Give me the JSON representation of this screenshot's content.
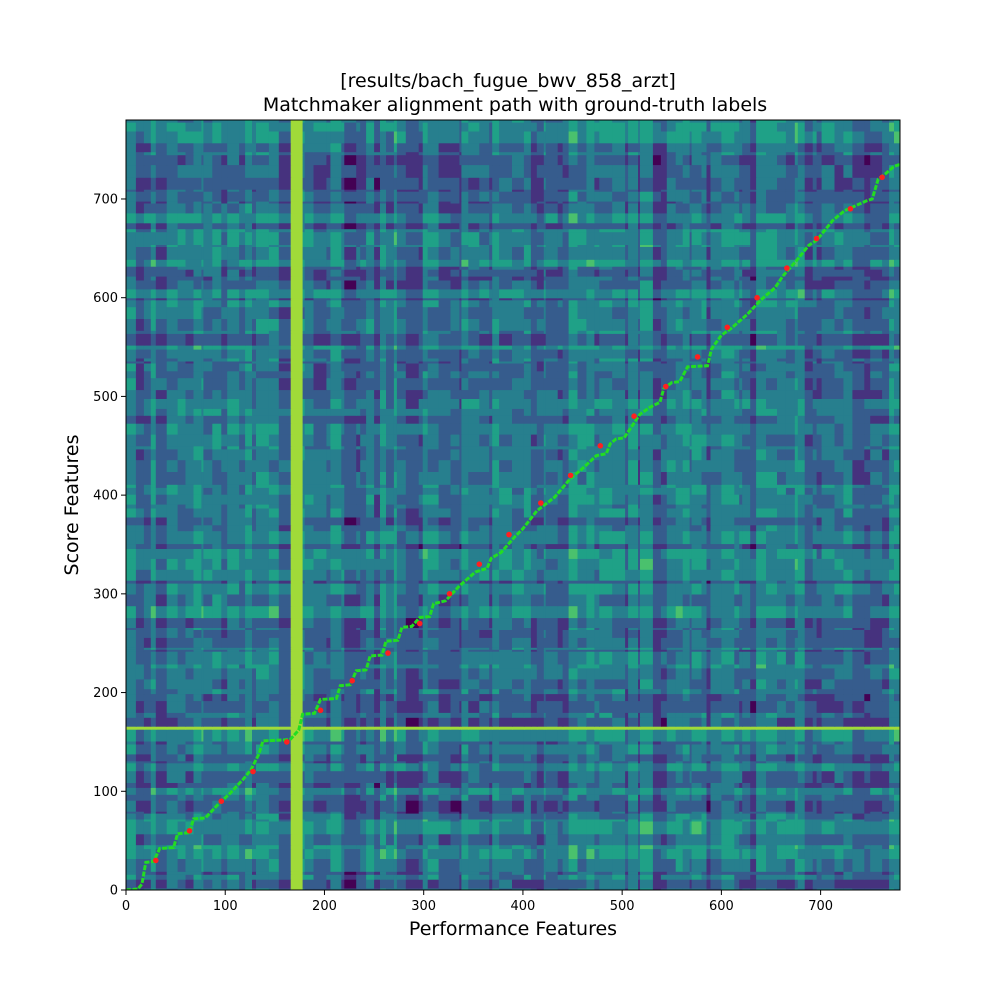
{
  "chart_data": {
    "type": "heatmap",
    "title_line1": "[results/bach_fugue_bwv_858_arzt]",
    "title_line2": "Matchmaker alignment path with ground-truth labels",
    "xlabel": "Performance Features",
    "ylabel": "Score Features",
    "xlim": [
      0,
      780
    ],
    "ylim": [
      0,
      780
    ],
    "x_ticks": [
      0,
      100,
      200,
      300,
      400,
      500,
      600,
      700
    ],
    "y_ticks": [
      0,
      100,
      200,
      300,
      400,
      500,
      600,
      700
    ],
    "colormap": "viridis",
    "path_color": "#22dd22",
    "label_color": "#ff2020",
    "alignment_path": [
      [
        0,
        0
      ],
      [
        12,
        1
      ],
      [
        16,
        6
      ],
      [
        20,
        28
      ],
      [
        28,
        29
      ],
      [
        34,
        42
      ],
      [
        48,
        43
      ],
      [
        52,
        57
      ],
      [
        64,
        58
      ],
      [
        68,
        72
      ],
      [
        80,
        73
      ],
      [
        94,
        88
      ],
      [
        104,
        97
      ],
      [
        118,
        112
      ],
      [
        126,
        122
      ],
      [
        134,
        138
      ],
      [
        138,
        151
      ],
      [
        160,
        152
      ],
      [
        166,
        153
      ],
      [
        174,
        162
      ],
      [
        178,
        178
      ],
      [
        190,
        179
      ],
      [
        196,
        193
      ],
      [
        212,
        194
      ],
      [
        216,
        207
      ],
      [
        226,
        208
      ],
      [
        232,
        222
      ],
      [
        242,
        223
      ],
      [
        246,
        237
      ],
      [
        258,
        238
      ],
      [
        262,
        252
      ],
      [
        274,
        253
      ],
      [
        278,
        266
      ],
      [
        288,
        267
      ],
      [
        296,
        276
      ],
      [
        306,
        277
      ],
      [
        310,
        290
      ],
      [
        322,
        293
      ],
      [
        336,
        308
      ],
      [
        352,
        322
      ],
      [
        364,
        326
      ],
      [
        368,
        336
      ],
      [
        378,
        342
      ],
      [
        392,
        358
      ],
      [
        400,
        366
      ],
      [
        414,
        384
      ],
      [
        432,
        398
      ],
      [
        448,
        417
      ],
      [
        460,
        427
      ],
      [
        474,
        440
      ],
      [
        484,
        442
      ],
      [
        488,
        452
      ],
      [
        494,
        457
      ],
      [
        502,
        458
      ],
      [
        518,
        482
      ],
      [
        528,
        489
      ],
      [
        538,
        494
      ],
      [
        542,
        508
      ],
      [
        550,
        514
      ],
      [
        558,
        515
      ],
      [
        566,
        530
      ],
      [
        586,
        531
      ],
      [
        590,
        548
      ],
      [
        600,
        562
      ],
      [
        610,
        569
      ],
      [
        626,
        583
      ],
      [
        640,
        598
      ],
      [
        654,
        610
      ],
      [
        662,
        622
      ],
      [
        676,
        638
      ],
      [
        688,
        653
      ],
      [
        696,
        658
      ],
      [
        712,
        678
      ],
      [
        724,
        688
      ],
      [
        746,
        698
      ],
      [
        752,
        700
      ],
      [
        758,
        720
      ],
      [
        766,
        726
      ],
      [
        774,
        733
      ],
      [
        780,
        735
      ]
    ],
    "ground_truth_labels": [
      [
        30,
        30
      ],
      [
        64,
        60
      ],
      [
        96,
        90
      ],
      [
        128,
        120
      ],
      [
        162,
        150
      ],
      [
        196,
        182
      ],
      [
        228,
        212
      ],
      [
        264,
        240
      ],
      [
        296,
        270
      ],
      [
        326,
        300
      ],
      [
        356,
        330
      ],
      [
        386,
        360
      ],
      [
        418,
        392
      ],
      [
        448,
        420
      ],
      [
        478,
        450
      ],
      [
        512,
        480
      ],
      [
        544,
        510
      ],
      [
        576,
        540
      ],
      [
        606,
        570
      ],
      [
        636,
        600
      ],
      [
        666,
        630
      ],
      [
        696,
        660
      ],
      [
        730,
        690
      ],
      [
        762,
        722
      ]
    ]
  }
}
